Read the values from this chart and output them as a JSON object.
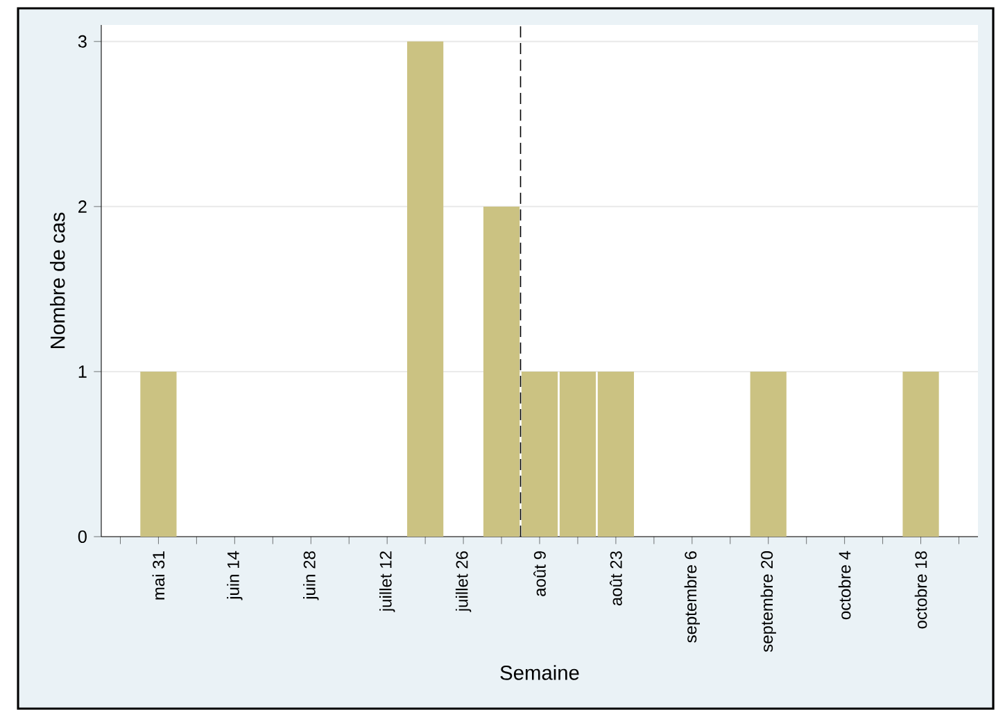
{
  "chart_data": {
    "type": "bar",
    "xlabel": "Semaine",
    "ylabel": "Nombre de cas",
    "categories": [
      null,
      "mai 31",
      null,
      "juin 14",
      null,
      "juin 28",
      null,
      "juillet 12",
      null,
      "juillet 26",
      null,
      "août 9",
      null,
      "août 23",
      null,
      "septembre 6",
      null,
      "septembre 20",
      null,
      "octobre 4",
      null,
      "octobre 18",
      null
    ],
    "values": [
      0,
      1,
      0,
      0,
      0,
      0,
      0,
      0,
      3,
      0,
      2,
      1,
      1,
      1,
      0,
      0,
      0,
      1,
      0,
      0,
      0,
      1,
      0
    ],
    "color": "#cbc282",
    "ylim": [
      0,
      3.1
    ],
    "yticks": [
      0,
      1,
      2,
      3
    ],
    "grid": "y"
  }
}
